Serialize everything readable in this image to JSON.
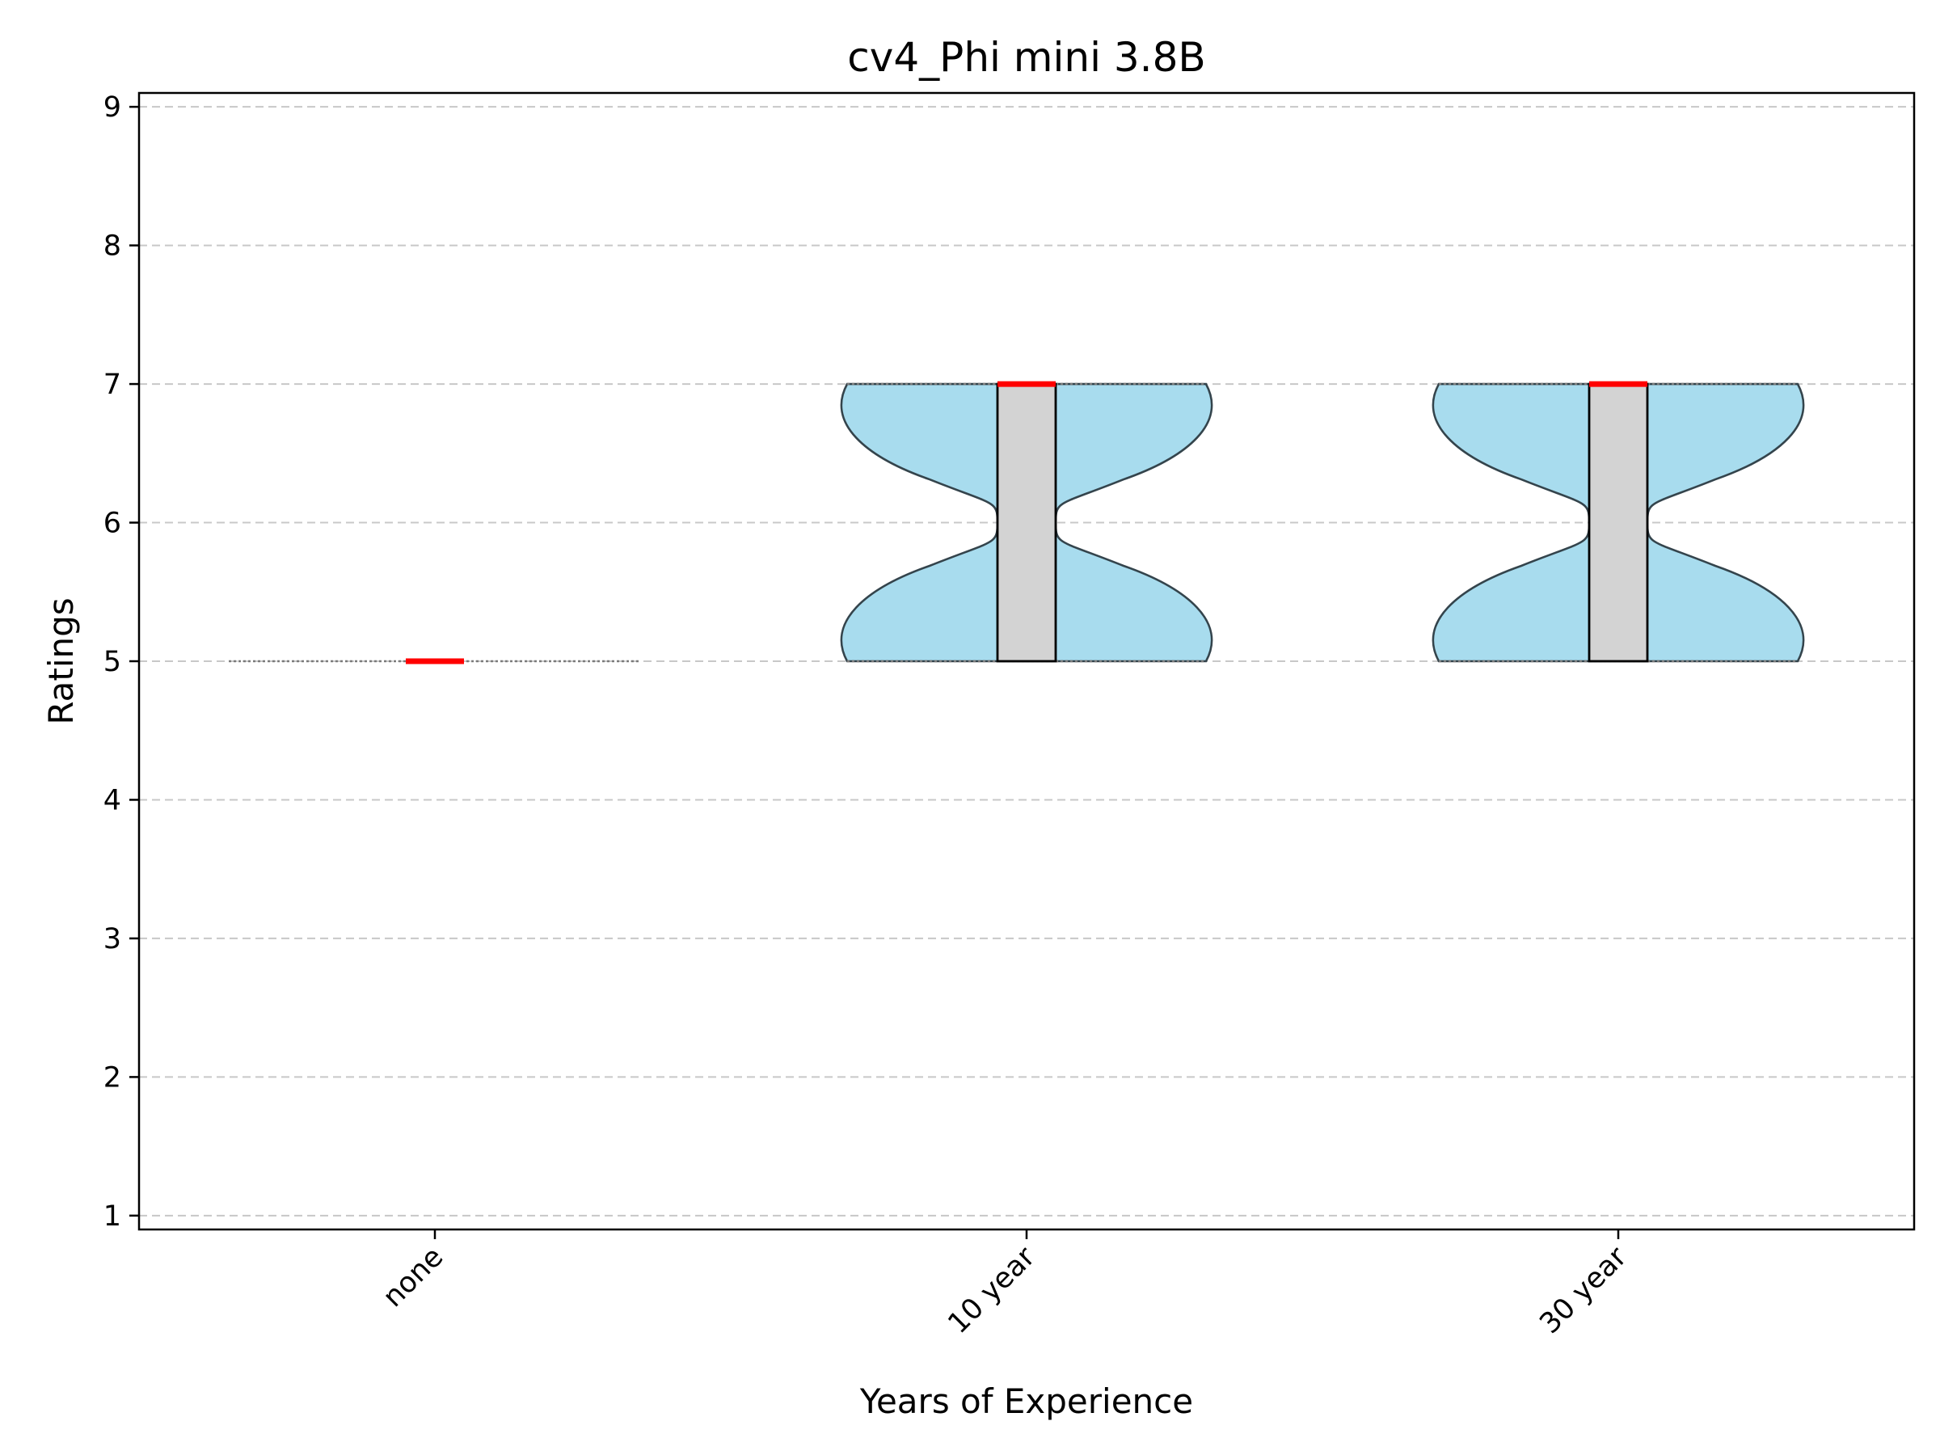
{
  "chart_data": {
    "type": "violin",
    "title": "cv4_Phi mini 3.8B",
    "xlabel": "Years of Experience",
    "ylabel": "Ratings",
    "categories": [
      "none",
      "10 year",
      "30 year"
    ],
    "ylim": [
      0.9,
      9.1
    ],
    "yticks": [
      1,
      2,
      3,
      4,
      5,
      6,
      7,
      8,
      9
    ],
    "grid": "y-dashed",
    "colors": {
      "violin": "#a8dcee",
      "box": "#d3d3d3",
      "median": "#ff0000"
    },
    "distributions": [
      {
        "category": "none",
        "min": 5,
        "q1": 5,
        "median": 5,
        "q3": 5,
        "max": 5,
        "values": [
          5
        ]
      },
      {
        "category": "10 year",
        "min": 5,
        "q1": 5,
        "median": 7,
        "q3": 7,
        "max": 7,
        "values": [
          5,
          7
        ]
      },
      {
        "category": "30 year",
        "min": 5,
        "q1": 5,
        "median": 7,
        "q3": 7,
        "max": 7,
        "values": [
          5,
          7
        ]
      }
    ]
  }
}
